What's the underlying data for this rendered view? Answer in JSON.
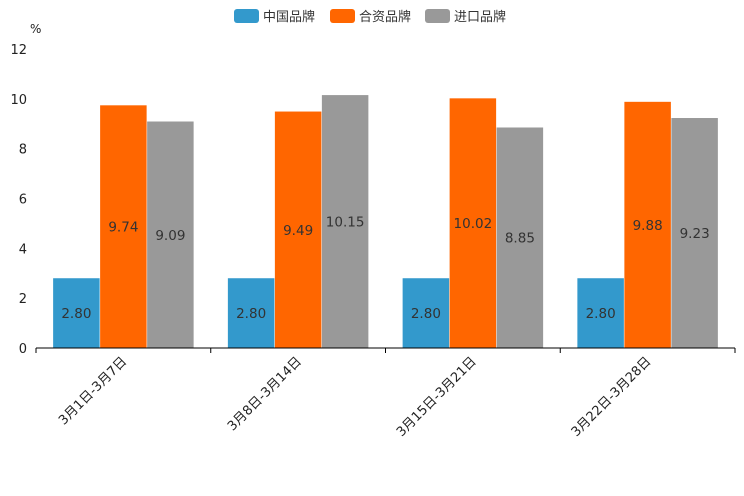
{
  "chart_data": {
    "type": "bar",
    "title": "",
    "xlabel": "",
    "ylabel": "%",
    "ylim": [
      0,
      12
    ],
    "yticks": [
      0,
      2,
      4,
      6,
      8,
      10,
      12
    ],
    "grid": false,
    "legend_position": "top-center",
    "categories": [
      "3月1日-3月7日",
      "3月8日-3月14日",
      "3月15日-3月21日",
      "3月22日-3月28日"
    ],
    "series": [
      {
        "name": "中国品牌",
        "color": "#3399cc",
        "values": [
          2.8,
          2.8,
          2.8,
          2.8
        ],
        "labels": [
          "2.80",
          "2.80",
          "2.80",
          "2.80"
        ]
      },
      {
        "name": "合资品牌",
        "color": "#ff6600",
        "values": [
          9.74,
          9.49,
          10.02,
          9.88
        ],
        "labels": [
          "9.74",
          "9.49",
          "10.02",
          "9.88"
        ]
      },
      {
        "name": "进口品牌",
        "color": "#999999",
        "values": [
          9.09,
          10.15,
          8.85,
          9.23
        ],
        "labels": [
          "9.09",
          "10.15",
          "8.85",
          "9.23"
        ]
      }
    ]
  }
}
